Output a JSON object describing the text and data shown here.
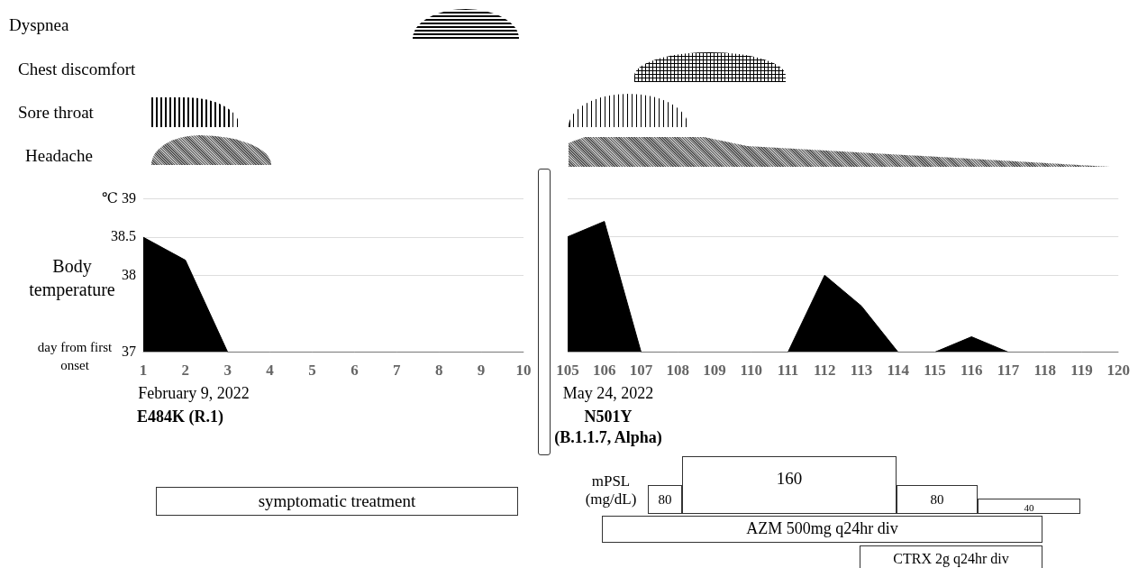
{
  "chart_data": [
    {
      "type": "area",
      "ylabel": "Body temperature",
      "xlabel": "day from first onset",
      "categories": [
        "1",
        "2",
        "3",
        "4",
        "5",
        "6",
        "7",
        "8",
        "9",
        "10"
      ],
      "values": [
        38.5,
        38.2,
        37,
        37,
        37,
        37,
        37,
        37,
        37,
        37
      ],
      "color": "#000000",
      "ylim": [
        37,
        39
      ],
      "yticks": [
        37,
        38,
        38.5,
        {
          "value": 39,
          "label": "℃ 39"
        }
      ],
      "grid": "y",
      "annotations": [
        "Dyspnea",
        "Chest discomfort",
        "Sore throat",
        "Headache",
        "February 9, 2022",
        "E484K (R.1)",
        "symptomatic treatment"
      ]
    },
    {
      "type": "area",
      "categories": [
        "105",
        "106",
        "107",
        "108",
        "109",
        "110",
        "111",
        "112",
        "113",
        "114",
        "115",
        "116",
        "117",
        "118",
        "119",
        "120"
      ],
      "values": [
        38.5,
        38.7,
        37,
        37,
        37,
        37,
        37,
        38,
        37.6,
        37,
        37,
        37.2,
        37,
        37,
        37,
        37
      ],
      "color": "#000000",
      "ylim": [
        37,
        39
      ],
      "yticks": [
        37,
        38,
        38.5,
        39
      ],
      "grid": "y",
      "tick_labels": "x",
      "annotations": [
        "May 24, 2022",
        "N501Y",
        "(B.1.1.7, Alpha)",
        "mPSL\n(mg/dL)",
        "80",
        "160",
        "80",
        "40",
        "AZM   500mg q24hr div",
        "CTRX   2g q24hr div"
      ]
    }
  ]
}
